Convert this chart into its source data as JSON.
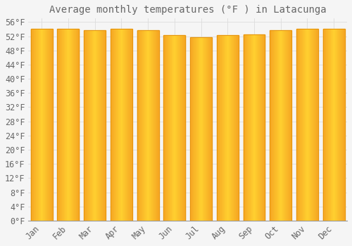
{
  "title": "Average monthly temperatures (°F ) in Latacunga",
  "months": [
    "Jan",
    "Feb",
    "Mar",
    "Apr",
    "May",
    "Jun",
    "Jul",
    "Aug",
    "Sep",
    "Oct",
    "Nov",
    "Dec"
  ],
  "values": [
    54.0,
    54.0,
    53.6,
    54.0,
    53.6,
    52.2,
    51.8,
    52.3,
    52.5,
    53.6,
    54.0,
    54.0
  ],
  "bar_color_left": "#F5A623",
  "bar_color_center": "#FDD835",
  "bar_color_right": "#F5A623",
  "bar_edge_color": "#E6940A",
  "background_color": "#F5F5F5",
  "grid_color": "#DDDDDD",
  "text_color": "#666666",
  "ylim": [
    0,
    57
  ],
  "ytick_values": [
    0,
    4,
    8,
    12,
    16,
    20,
    24,
    28,
    32,
    36,
    40,
    44,
    48,
    52,
    56
  ],
  "title_fontsize": 10,
  "tick_fontsize": 8.5,
  "bar_width": 0.82
}
